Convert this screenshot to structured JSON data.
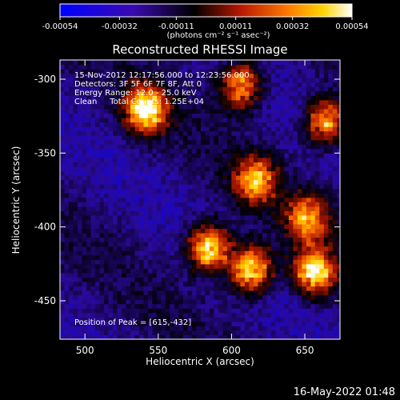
{
  "chart_data": {
    "type": "heatmap",
    "title": "Reconstructed RHESSI Image",
    "xlabel": "Heliocentric X (arcsec)",
    "ylabel": "Heliocentric Y (arcsec)",
    "xlim": [
      483,
      674
    ],
    "ylim": [
      -476,
      -287
    ],
    "x_ticks": [
      500,
      550,
      600,
      650
    ],
    "y_ticks": [
      -300,
      -350,
      -400,
      -450
    ],
    "colorbar": {
      "range": [
        -0.00054,
        0.00054
      ],
      "ticks": [
        "-0.00054",
        "-0.00032",
        "-0.00011",
        "0.00011",
        "0.00032",
        "0.00054"
      ],
      "unit_label": "(photons cm⁻² s⁻¹ asec⁻²)",
      "colors": [
        "#0000ff",
        "#2a0a9a",
        "#000000",
        "#a81500",
        "#ff7000",
        "#ffd800",
        "#ffffff"
      ]
    },
    "annotations": [
      "15-Nov-2012 12:17:56.000 to 12:23:56.000",
      "Detectors: 3F 5F 6F 7F 8F, Att 0",
      "Energy Range: 12.0 - 25.0 keV",
      "Clean     Total Counts: 1.25E+04"
    ],
    "peak_label": "Position of Peak = [615,-432]",
    "peak": [
      615,
      -432
    ],
    "bright_regions": [
      {
        "x": 540,
        "y": -322,
        "intensity": 0.00054
      },
      {
        "x": 583,
        "y": -415,
        "intensity": 0.00054
      },
      {
        "x": 612,
        "y": -430,
        "intensity": 0.00054
      },
      {
        "x": 655,
        "y": -432,
        "intensity": 0.0005
      },
      {
        "x": 663,
        "y": -330,
        "intensity": 0.0004
      },
      {
        "x": 605,
        "y": -305,
        "intensity": 0.0004
      },
      {
        "x": 615,
        "y": -370,
        "intensity": 0.00036
      },
      {
        "x": 650,
        "y": -395,
        "intensity": 0.00032
      }
    ]
  },
  "footer": {
    "date": "16-May-2022 01:48"
  }
}
